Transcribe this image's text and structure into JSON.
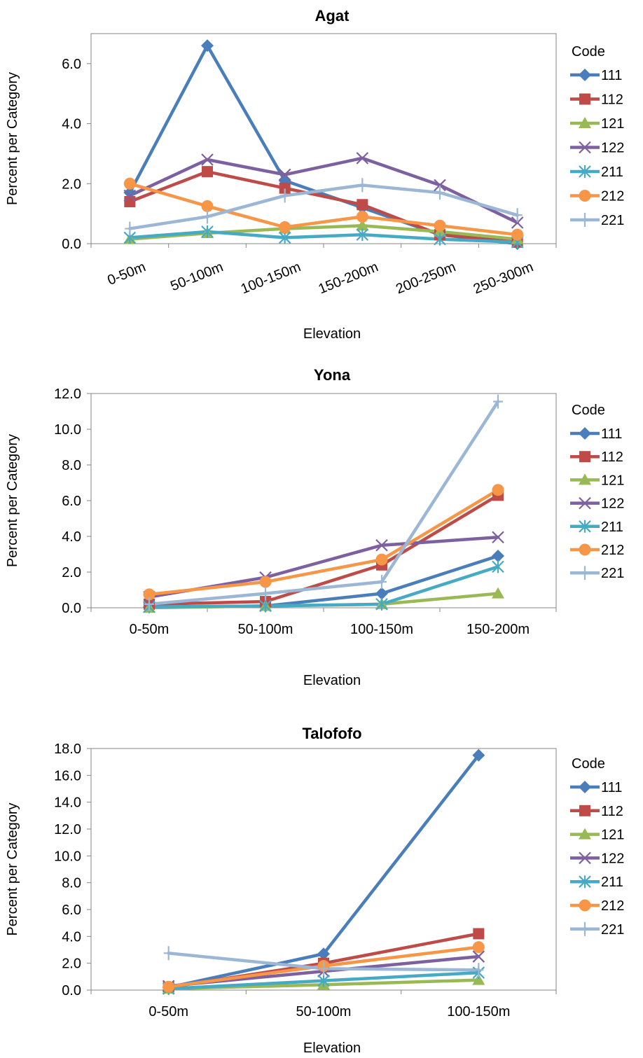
{
  "chart_data": [
    {
      "type": "line",
      "title": "Agat",
      "xlabel": "Elevation",
      "ylabel": "Percent per Category",
      "ylim": [
        0,
        7
      ],
      "yticks": [
        "0.0",
        "2.0",
        "4.0",
        "6.0"
      ],
      "categories": [
        "0-50m",
        "50-100m",
        "100-150m",
        "150-200m",
        "200-250m",
        "250-300m"
      ],
      "x_tick_rotation": "rotated",
      "legend_title": "Code",
      "legend_position": "right",
      "grid": false,
      "series": [
        {
          "name": "111",
          "color": "#4A7EBB",
          "marker": "diamond",
          "values": [
            1.7,
            6.6,
            2.1,
            1.2,
            0.3,
            0.0
          ]
        },
        {
          "name": "112",
          "color": "#BE4B48",
          "marker": "square",
          "values": [
            1.4,
            2.4,
            1.85,
            1.3,
            0.3,
            0.05
          ]
        },
        {
          "name": "121",
          "color": "#98B954",
          "marker": "triangle",
          "values": [
            0.15,
            0.35,
            0.5,
            0.6,
            0.4,
            0.15
          ]
        },
        {
          "name": "122",
          "color": "#7D60A0",
          "marker": "x",
          "values": [
            1.6,
            2.8,
            2.3,
            2.85,
            1.95,
            0.7
          ]
        },
        {
          "name": "211",
          "color": "#46AAC5",
          "marker": "star",
          "values": [
            0.2,
            0.4,
            0.2,
            0.3,
            0.15,
            0.05
          ]
        },
        {
          "name": "212",
          "color": "#F79646",
          "marker": "circle",
          "values": [
            2.0,
            1.25,
            0.55,
            0.9,
            0.6,
            0.3
          ]
        },
        {
          "name": "221",
          "color": "#9BB7D5",
          "marker": "plus",
          "values": [
            0.5,
            0.9,
            1.6,
            1.95,
            1.7,
            0.95
          ]
        }
      ]
    },
    {
      "type": "line",
      "title": "Yona",
      "xlabel": "Elevation",
      "ylabel": "Percent per Category",
      "ylim": [
        0,
        12
      ],
      "yticks": [
        "0.0",
        "2.0",
        "4.0",
        "6.0",
        "8.0",
        "10.0",
        "12.0"
      ],
      "categories": [
        "0-50m",
        "50-100m",
        "100-150m",
        "150-200m"
      ],
      "x_tick_rotation": "none",
      "legend_title": "Code",
      "legend_position": "right",
      "grid": false,
      "series": [
        {
          "name": "111",
          "color": "#4A7EBB",
          "marker": "diamond",
          "values": [
            0.05,
            0.1,
            0.8,
            2.9
          ]
        },
        {
          "name": "112",
          "color": "#BE4B48",
          "marker": "square",
          "values": [
            0.2,
            0.35,
            2.4,
            6.3
          ]
        },
        {
          "name": "121",
          "color": "#98B954",
          "marker": "triangle",
          "values": [
            0.0,
            0.1,
            0.2,
            0.8
          ]
        },
        {
          "name": "122",
          "color": "#7D60A0",
          "marker": "x",
          "values": [
            0.6,
            1.7,
            3.5,
            3.95
          ]
        },
        {
          "name": "211",
          "color": "#46AAC5",
          "marker": "star",
          "values": [
            0.05,
            0.1,
            0.2,
            2.3
          ]
        },
        {
          "name": "212",
          "color": "#F79646",
          "marker": "circle",
          "values": [
            0.75,
            1.45,
            2.7,
            6.6
          ]
        },
        {
          "name": "221",
          "color": "#9BB7D5",
          "marker": "plus",
          "values": [
            0.2,
            0.8,
            1.45,
            11.55
          ]
        }
      ]
    },
    {
      "type": "line",
      "title": "Talofofo",
      "xlabel": "Elevation",
      "ylabel": "Percent per Category",
      "ylim": [
        0,
        18
      ],
      "yticks": [
        "0.0",
        "2.0",
        "4.0",
        "6.0",
        "8.0",
        "10.0",
        "12.0",
        "14.0",
        "16.0",
        "18.0"
      ],
      "categories": [
        "0-50m",
        "50-100m",
        "100-150m"
      ],
      "x_tick_rotation": "none",
      "legend_title": "Code",
      "legend_position": "right",
      "grid": false,
      "series": [
        {
          "name": "111",
          "color": "#4A7EBB",
          "marker": "diamond",
          "values": [
            0.2,
            2.7,
            17.5
          ]
        },
        {
          "name": "112",
          "color": "#BE4B48",
          "marker": "square",
          "values": [
            0.2,
            2.0,
            4.2
          ]
        },
        {
          "name": "121",
          "color": "#98B954",
          "marker": "triangle",
          "values": [
            0.1,
            0.4,
            0.75
          ]
        },
        {
          "name": "122",
          "color": "#7D60A0",
          "marker": "x",
          "values": [
            0.3,
            1.4,
            2.5
          ]
        },
        {
          "name": "211",
          "color": "#46AAC5",
          "marker": "star",
          "values": [
            0.1,
            0.7,
            1.3
          ]
        },
        {
          "name": "212",
          "color": "#F79646",
          "marker": "circle",
          "values": [
            0.25,
            1.8,
            3.2
          ]
        },
        {
          "name": "221",
          "color": "#9BB7D5",
          "marker": "plus",
          "values": [
            2.75,
            1.6,
            1.5
          ]
        }
      ]
    }
  ]
}
